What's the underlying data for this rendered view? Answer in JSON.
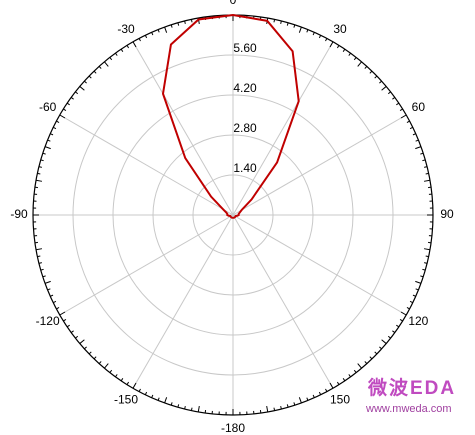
{
  "chart_data": {
    "type": "polar",
    "x": [
      -180,
      -170,
      -160,
      -150,
      -140,
      -130,
      -120,
      -110,
      -100,
      -90,
      -80,
      -70,
      -60,
      -50,
      -40,
      -30,
      -20,
      -10,
      0,
      10,
      20,
      30,
      40,
      50,
      60,
      70,
      80,
      90,
      100,
      110,
      120,
      130,
      140,
      150,
      160,
      170,
      180
    ],
    "values": [
      0.1,
      0.1,
      0.1,
      0.1,
      0.1,
      0.1,
      0.1,
      0.1,
      0.15,
      0.2,
      0.2,
      0.25,
      0.4,
      1.0,
      2.6,
      4.9,
      6.35,
      6.95,
      7.0,
      6.9,
      6.1,
      4.6,
      2.4,
      0.85,
      0.35,
      0.25,
      0.2,
      0.2,
      0.15,
      0.1,
      0.1,
      0.1,
      0.1,
      0.1,
      0.1,
      0.1,
      0.1
    ],
    "color": "#c00000",
    "rlim": [
      0,
      7
    ],
    "rticks": [
      {
        "value": 1.4,
        "label": "1.40"
      },
      {
        "value": 2.8,
        "label": "2.80"
      },
      {
        "value": 4.2,
        "label": "4.20"
      },
      {
        "value": 5.6,
        "label": "5.60"
      }
    ],
    "thetaticks": [
      0,
      30,
      60,
      90,
      120,
      150,
      -180,
      -150,
      -120,
      -90,
      -60,
      -30
    ],
    "theta_zero": "top",
    "theta_direction": "clockwise",
    "grid": true
  },
  "watermark": {
    "title": "微波EDA",
    "url": "www.mweda.com"
  }
}
